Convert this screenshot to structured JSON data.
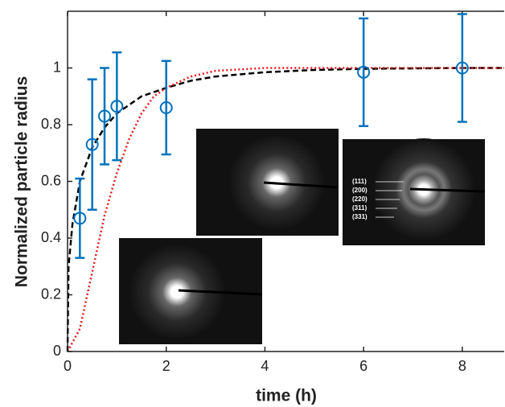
{
  "chart_data": {
    "type": "scatter",
    "xlabel": "time (h)",
    "ylabel": "Normalized particle radius",
    "xlim": [
      0,
      8.85
    ],
    "ylim": [
      0,
      1.2
    ],
    "xticks": [
      0,
      2,
      4,
      6,
      8
    ],
    "yticks": [
      0,
      0.2,
      0.4,
      0.6,
      0.8,
      1
    ],
    "series": [
      {
        "color": "#0072bd",
        "x": [
          0.25,
          0.5,
          0.75,
          1,
          2,
          6,
          8
        ],
        "values": [
          0.47,
          0.73,
          0.83,
          0.865,
          0.86,
          0.985,
          1.0
        ],
        "errors": [
          0.14,
          0.23,
          0.17,
          0.19,
          0.165,
          0.19,
          0.19
        ]
      }
    ],
    "curves": [
      {
        "color": "#000000",
        "style": "dashed",
        "x": [
          0,
          0.02,
          0.1,
          0.25,
          0.5,
          0.75,
          1,
          1.5,
          2,
          2.5,
          3,
          4,
          5,
          6,
          8,
          8.85
        ],
        "values": [
          0,
          0.3,
          0.45,
          0.6,
          0.72,
          0.79,
          0.84,
          0.9,
          0.93,
          0.955,
          0.97,
          0.985,
          0.993,
          0.997,
          1,
          1
        ]
      },
      {
        "color": "#e41a1c",
        "style": "dotted",
        "x": [
          0,
          0.25,
          0.5,
          0.75,
          1,
          1.25,
          1.5,
          1.75,
          2,
          2.5,
          3,
          4,
          6,
          8.85
        ],
        "values": [
          0,
          0.08,
          0.28,
          0.48,
          0.63,
          0.75,
          0.84,
          0.9,
          0.93,
          0.97,
          0.99,
          1,
          1,
          1
        ]
      }
    ],
    "annotations": [
      "(111)",
      "(200)",
      "(220)",
      "(311)",
      "(331)"
    ]
  }
}
